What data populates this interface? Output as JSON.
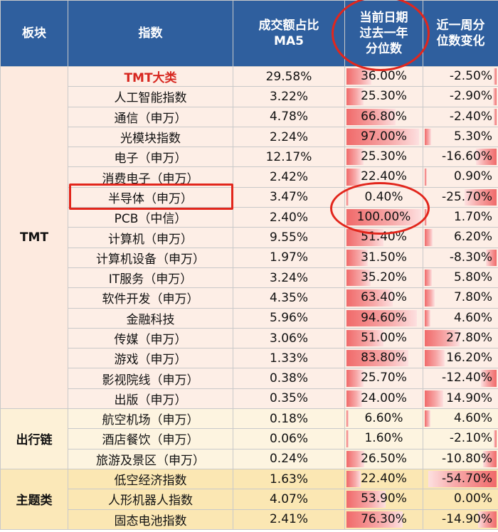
{
  "header": {
    "sector": "板块",
    "index": "指数",
    "ma5_line1": "成交额占比",
    "ma5_line2": "MA5",
    "pct_line1": "当前日期",
    "pct_line2": "过去一年",
    "pct_line3": "分位数",
    "chg_line1": "近一周分",
    "chg_line2": "位数变化"
  },
  "sectors": {
    "tmt": "TMT",
    "travel": "出行链",
    "theme": "主题类"
  },
  "rows": [
    {
      "group": "tmt",
      "name": "TMT大类",
      "ma5": "29.58%",
      "pct": "36.00%",
      "pct_v": 0.36,
      "chg": "-2.50%",
      "chg_v": -0.025,
      "bold": true
    },
    {
      "group": "tmt",
      "name": "人工智能指数",
      "ma5": "3.22%",
      "pct": "25.30%",
      "pct_v": 0.253,
      "chg": "-2.90%",
      "chg_v": -0.029
    },
    {
      "group": "tmt",
      "name": "通信（申万）",
      "ma5": "4.78%",
      "pct": "66.80%",
      "pct_v": 0.668,
      "chg": "-2.40%",
      "chg_v": -0.024
    },
    {
      "group": "tmt",
      "name": "光模块指数",
      "ma5": "2.24%",
      "pct": "97.00%",
      "pct_v": 0.97,
      "chg": "5.30%",
      "chg_v": 0.053
    },
    {
      "group": "tmt",
      "name": "电子（申万）",
      "ma5": "12.17%",
      "pct": "25.30%",
      "pct_v": 0.253,
      "chg": "-16.60%",
      "chg_v": -0.166
    },
    {
      "group": "tmt",
      "name": "消费电子（申万）",
      "ma5": "2.42%",
      "pct": "22.40%",
      "pct_v": 0.224,
      "chg": "0.90%",
      "chg_v": 0.009
    },
    {
      "group": "tmt",
      "name": "半导体（申万）",
      "ma5": "3.47%",
      "pct": "0.40%",
      "pct_v": 0.004,
      "chg": "-25.70%",
      "chg_v": -0.257
    },
    {
      "group": "tmt",
      "name": "PCB（中信）",
      "ma5": "2.40%",
      "pct": "100.00%",
      "pct_v": 1.0,
      "chg": "1.70%",
      "chg_v": 0.017
    },
    {
      "group": "tmt",
      "name": "计算机（申万）",
      "ma5": "9.55%",
      "pct": "51.40%",
      "pct_v": 0.514,
      "chg": "6.20%",
      "chg_v": 0.062
    },
    {
      "group": "tmt",
      "name": "计算机设备（申万）",
      "ma5": "1.97%",
      "pct": "31.50%",
      "pct_v": 0.315,
      "chg": "-8.30%",
      "chg_v": -0.083
    },
    {
      "group": "tmt",
      "name": "IT服务（申万）",
      "ma5": "3.24%",
      "pct": "35.20%",
      "pct_v": 0.352,
      "chg": "5.80%",
      "chg_v": 0.058
    },
    {
      "group": "tmt",
      "name": "软件开发（申万）",
      "ma5": "4.35%",
      "pct": "63.40%",
      "pct_v": 0.634,
      "chg": "7.80%",
      "chg_v": 0.078
    },
    {
      "group": "tmt",
      "name": "金融科技",
      "ma5": "5.96%",
      "pct": "94.60%",
      "pct_v": 0.946,
      "chg": "4.60%",
      "chg_v": 0.046
    },
    {
      "group": "tmt",
      "name": "传媒（申万）",
      "ma5": "3.06%",
      "pct": "51.00%",
      "pct_v": 0.51,
      "chg": "27.80%",
      "chg_v": 0.278
    },
    {
      "group": "tmt",
      "name": "游戏（申万）",
      "ma5": "1.33%",
      "pct": "83.80%",
      "pct_v": 0.838,
      "chg": "16.20%",
      "chg_v": 0.162
    },
    {
      "group": "tmt",
      "name": "影视院线（申万）",
      "ma5": "0.38%",
      "pct": "25.70%",
      "pct_v": 0.257,
      "chg": "-12.40%",
      "chg_v": -0.124
    },
    {
      "group": "tmt",
      "name": "出版（申万）",
      "ma5": "0.35%",
      "pct": "24.00%",
      "pct_v": 0.24,
      "chg": "14.90%",
      "chg_v": 0.149
    },
    {
      "group": "travel",
      "name": "航空机场（申万）",
      "ma5": "0.18%",
      "pct": "6.60%",
      "pct_v": 0.066,
      "chg": "4.60%",
      "chg_v": 0.046
    },
    {
      "group": "travel",
      "name": "酒店餐饮（申万）",
      "ma5": "0.06%",
      "pct": "1.60%",
      "pct_v": 0.016,
      "chg": "-2.10%",
      "chg_v": -0.021
    },
    {
      "group": "travel",
      "name": "旅游及景区（申万）",
      "ma5": "0.24%",
      "pct": "26.50%",
      "pct_v": 0.265,
      "chg": "-10.80%",
      "chg_v": -0.108
    },
    {
      "group": "theme",
      "name": "低空经济指数",
      "ma5": "1.63%",
      "pct": "22.40%",
      "pct_v": 0.224,
      "chg": "-54.70%",
      "chg_v": -0.547
    },
    {
      "group": "theme",
      "name": "人形机器人指数",
      "ma5": "4.07%",
      "pct": "53.90%",
      "pct_v": 0.539,
      "chg": "0.00%",
      "chg_v": 0.0
    },
    {
      "group": "theme",
      "name": "固态电池指数",
      "ma5": "2.41%",
      "pct": "76.30%",
      "pct_v": 0.763,
      "chg": "-14.90%",
      "chg_v": -0.149
    }
  ],
  "colors": {
    "header_bg": "#2f5f9e",
    "highlight_red": "#e2261c",
    "bar_red": "#f06a6a"
  }
}
